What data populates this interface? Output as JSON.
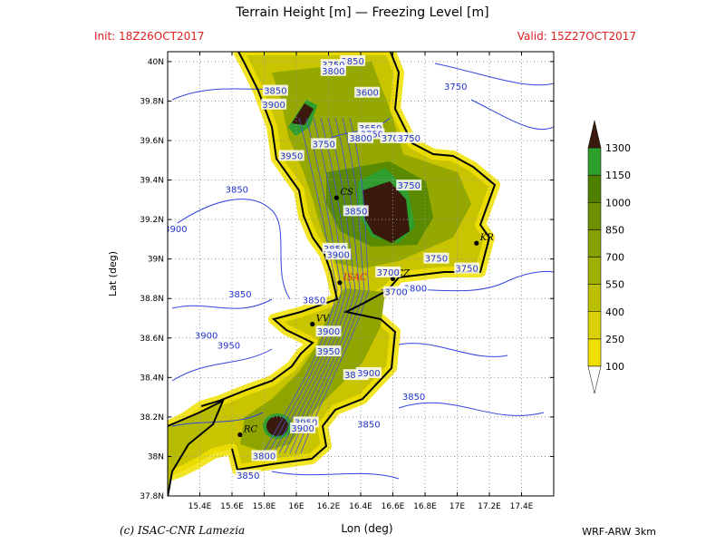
{
  "header": {
    "title": "Terrain Height [m] — Freezing Level [m]",
    "init": "Init: 18Z26OCT2017",
    "valid": "Valid: 15Z27OCT2017"
  },
  "footer": {
    "credit": "(c) ISAC-CNR Lamezia",
    "model": "WRF-ARW 3km"
  },
  "chart_data": {
    "type": "map",
    "xlabel": "Lon (deg)",
    "ylabel": "Lat (deg)",
    "xlim": [
      15.2,
      17.6
    ],
    "ylim": [
      37.8,
      40.05
    ],
    "x_ticks": [
      {
        "v": 15.4,
        "label": "15.4E"
      },
      {
        "v": 15.6,
        "label": "15.6E"
      },
      {
        "v": 15.8,
        "label": "15.8E"
      },
      {
        "v": 16.0,
        "label": "16E"
      },
      {
        "v": 16.2,
        "label": "16.2E"
      },
      {
        "v": 16.4,
        "label": "16.4E"
      },
      {
        "v": 16.6,
        "label": "16.6E"
      },
      {
        "v": 16.8,
        "label": "16.8E"
      },
      {
        "v": 17.0,
        "label": "17E"
      },
      {
        "v": 17.2,
        "label": "17.2E"
      },
      {
        "v": 17.4,
        "label": "17.4E"
      }
    ],
    "y_ticks": [
      {
        "v": 37.8,
        "label": "37.8N"
      },
      {
        "v": 38.0,
        "label": "38N"
      },
      {
        "v": 38.2,
        "label": "38.2N"
      },
      {
        "v": 38.4,
        "label": "38.4N"
      },
      {
        "v": 38.6,
        "label": "38.6N"
      },
      {
        "v": 38.8,
        "label": "38.8N"
      },
      {
        "v": 39.0,
        "label": "39N"
      },
      {
        "v": 39.2,
        "label": "39.2N"
      },
      {
        "v": 39.4,
        "label": "39.4N"
      },
      {
        "v": 39.6,
        "label": "39.6N"
      },
      {
        "v": 39.8,
        "label": "39.8N"
      },
      {
        "v": 40.0,
        "label": "40N"
      }
    ],
    "grid": true,
    "colorbar": {
      "levels": [
        100,
        250,
        400,
        550,
        700,
        850,
        1000,
        1150,
        1300
      ],
      "colors": [
        "#f0e000",
        "#d8d000",
        "#bcc000",
        "#a0b000",
        "#86a000",
        "#6c9000",
        "#508000",
        "#2e9e2e",
        "#087008",
        "#3a1a0c"
      ],
      "label_levels": [
        "100",
        "250",
        "400",
        "550",
        "700",
        "850",
        "1000",
        "1150",
        "1300"
      ]
    },
    "cities": [
      {
        "name": "CS",
        "lon": 16.25,
        "lat": 39.31
      },
      {
        "name": "KR",
        "lon": 17.12,
        "lat": 39.08
      },
      {
        "name": "ISAC",
        "lon": 16.27,
        "lat": 38.88
      },
      {
        "name": "CZ",
        "lon": 16.6,
        "lat": 38.9
      },
      {
        "name": "VV",
        "lon": 16.1,
        "lat": 38.67
      },
      {
        "name": "RC",
        "lon": 15.65,
        "lat": 38.11
      }
    ],
    "freezing_level_labels": [
      {
        "text": "3850",
        "lon": 16.35,
        "lat": 40.0
      },
      {
        "text": "3750",
        "lon": 16.23,
        "lat": 39.98
      },
      {
        "text": "3800",
        "lon": 16.23,
        "lat": 39.95
      },
      {
        "text": "3850",
        "lon": 15.87,
        "lat": 39.85
      },
      {
        "text": "3900",
        "lon": 15.86,
        "lat": 39.78
      },
      {
        "text": "3600",
        "lon": 16.44,
        "lat": 39.84
      },
      {
        "text": "3750",
        "lon": 16.99,
        "lat": 39.87
      },
      {
        "text": "3650",
        "lon": 16.46,
        "lat": 39.66
      },
      {
        "text": "3750",
        "lon": 16.47,
        "lat": 39.63
      },
      {
        "text": "3800",
        "lon": 16.4,
        "lat": 39.61
      },
      {
        "text": "3700",
        "lon": 16.6,
        "lat": 39.61
      },
      {
        "text": "3750",
        "lon": 16.7,
        "lat": 39.61
      },
      {
        "text": "3750",
        "lon": 16.17,
        "lat": 39.58
      },
      {
        "text": "3950",
        "lon": 15.97,
        "lat": 39.52
      },
      {
        "text": "3850",
        "lon": 15.63,
        "lat": 39.35
      },
      {
        "text": "3750",
        "lon": 16.7,
        "lat": 39.37
      },
      {
        "text": "3850",
        "lon": 16.37,
        "lat": 39.24
      },
      {
        "text": "3900",
        "lon": 15.25,
        "lat": 39.15
      },
      {
        "text": "3850",
        "lon": 16.24,
        "lat": 39.05
      },
      {
        "text": "3900",
        "lon": 16.26,
        "lat": 39.02
      },
      {
        "text": "3750",
        "lon": 16.87,
        "lat": 39.0
      },
      {
        "text": "3750",
        "lon": 17.06,
        "lat": 38.95
      },
      {
        "text": "3700",
        "lon": 16.57,
        "lat": 38.93
      },
      {
        "text": "3800",
        "lon": 16.74,
        "lat": 38.85
      },
      {
        "text": "3700",
        "lon": 16.62,
        "lat": 38.83
      },
      {
        "text": "3850",
        "lon": 15.65,
        "lat": 38.82
      },
      {
        "text": "3850",
        "lon": 16.11,
        "lat": 38.79
      },
      {
        "text": "3900",
        "lon": 16.2,
        "lat": 38.63
      },
      {
        "text": "3900",
        "lon": 15.44,
        "lat": 38.61
      },
      {
        "text": "3950",
        "lon": 15.58,
        "lat": 38.56
      },
      {
        "text": "3950",
        "lon": 16.2,
        "lat": 38.53
      },
      {
        "text": "3850",
        "lon": 16.37,
        "lat": 38.41
      },
      {
        "text": "3900",
        "lon": 16.45,
        "lat": 38.42
      },
      {
        "text": "3850",
        "lon": 16.73,
        "lat": 38.3
      },
      {
        "text": "3950",
        "lon": 16.06,
        "lat": 38.17
      },
      {
        "text": "3900",
        "lon": 16.04,
        "lat": 38.14
      },
      {
        "text": "3850",
        "lon": 16.45,
        "lat": 38.16
      },
      {
        "text": "3800",
        "lon": 15.8,
        "lat": 38.0
      },
      {
        "text": "3850",
        "lon": 15.7,
        "lat": 37.9
      }
    ]
  }
}
